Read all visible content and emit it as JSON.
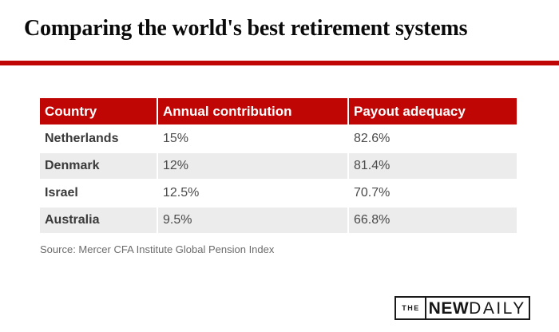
{
  "title": "Comparing the world's best retirement systems",
  "table": {
    "columns": [
      "Country",
      "Annual contribution",
      "Payout adequacy"
    ],
    "rows": [
      {
        "country": "Netherlands",
        "contribution": "15%",
        "payout": "82.6%"
      },
      {
        "country": "Denmark",
        "contribution": "12%",
        "payout": "81.4%"
      },
      {
        "country": "Israel",
        "contribution": "12.5%",
        "payout": "70.7%"
      },
      {
        "country": "Australia",
        "contribution": "9.5%",
        "payout": "66.8%"
      }
    ]
  },
  "source": "Source: Mercer CFA Institute Global Pension Index",
  "logo": {
    "the": "THE",
    "new": "NEW",
    "daily": "DAILY"
  },
  "colors": {
    "accent_red": "#c00505",
    "row_alt": "#ececec",
    "header_text": "#ffffff"
  },
  "chart_data": {
    "type": "table",
    "title": "Comparing the world's best retirement systems",
    "columns": [
      "Country",
      "Annual contribution",
      "Payout adequacy"
    ],
    "rows": [
      [
        "Netherlands",
        "15%",
        "82.6%"
      ],
      [
        "Denmark",
        "12%",
        "81.4%"
      ],
      [
        "Israel",
        "12.5%",
        "70.7%"
      ],
      [
        "Australia",
        "9.5%",
        "66.8%"
      ]
    ],
    "annual_contribution_pct": [
      15,
      12,
      12.5,
      9.5
    ],
    "payout_adequacy_pct": [
      82.6,
      81.4,
      70.7,
      66.8
    ],
    "source": "Source: Mercer CFA Institute Global Pension Index"
  }
}
